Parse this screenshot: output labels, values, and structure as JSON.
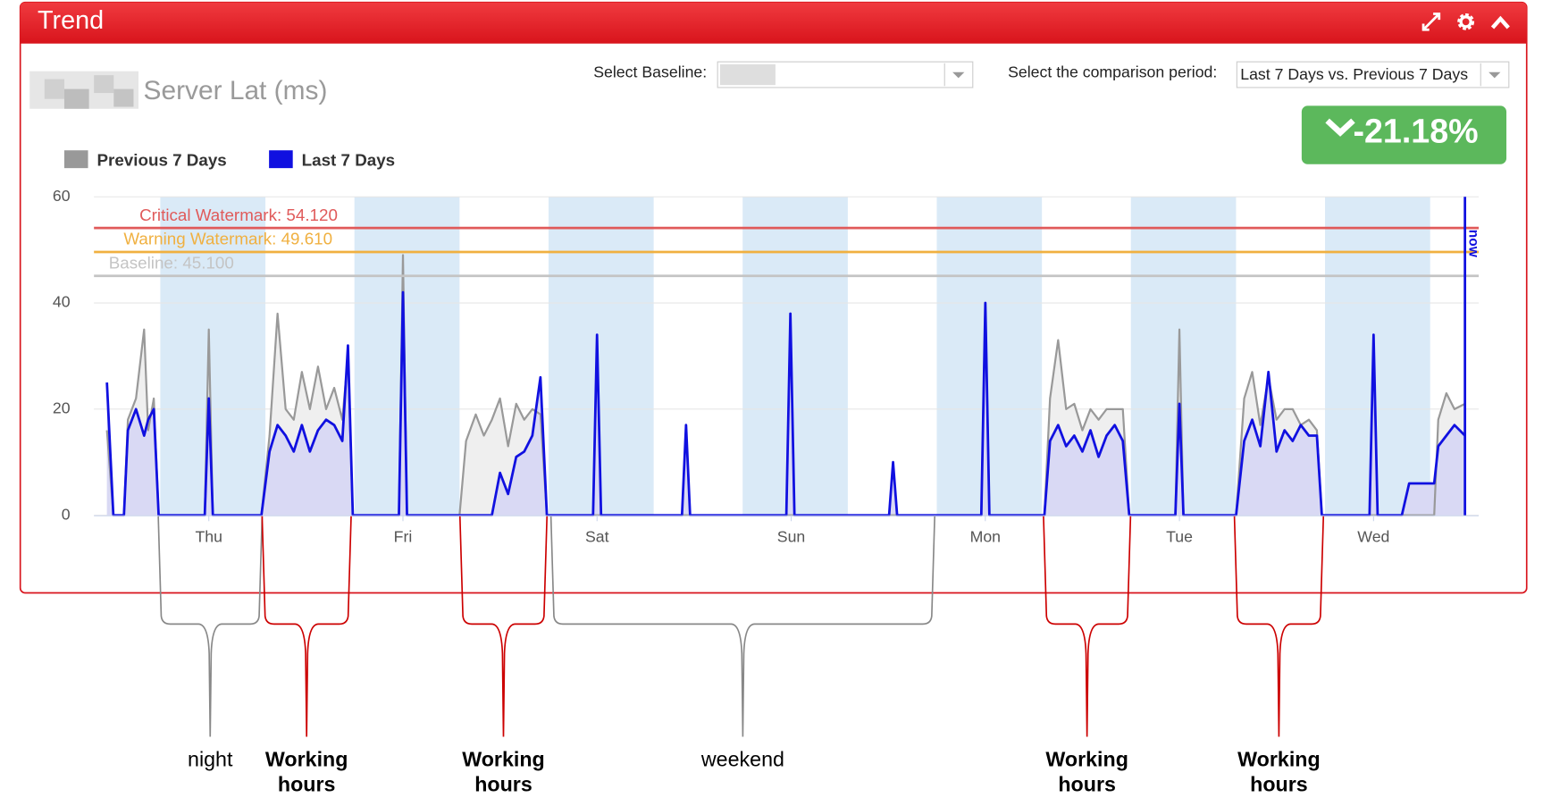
{
  "ui": {
    "panel_title": "Trend",
    "metric_title": "Server Lat (ms)",
    "baseline_label": "Select Baseline:",
    "period_label": "Select the comparison period:",
    "period_value": "Last 7 Days vs. Previous 7 Days",
    "change": "-21.18%"
  },
  "chart_data": {
    "type": "area",
    "xlim": [
      -14.2,
      157
    ],
    "xticks": [
      {
        "value": 0,
        "label": "Thu"
      },
      {
        "value": 24,
        "label": "Fri"
      },
      {
        "value": 48,
        "label": "Sat"
      },
      {
        "value": 72,
        "label": "Sun"
      },
      {
        "value": 96,
        "label": "Mon"
      },
      {
        "value": 120,
        "label": "Tue"
      },
      {
        "value": 144,
        "label": "Wed"
      }
    ],
    "ylim": [
      0,
      60
    ],
    "yticks": [
      0,
      20,
      40,
      60
    ],
    "grid": true,
    "legend": "top-left",
    "plot_bands": [
      [
        -6,
        7
      ],
      [
        18,
        31
      ],
      [
        42,
        55
      ],
      [
        66,
        79
      ],
      [
        90,
        103
      ],
      [
        114,
        127
      ],
      [
        138,
        151
      ]
    ],
    "plot_lines": [
      {
        "label": "Critical Watermark: 54.120",
        "value": 54.12,
        "color": "#e05a5a"
      },
      {
        "label": "Warning Watermark: 49.610",
        "value": 49.61,
        "color": "#f0b040"
      },
      {
        "label": "Baseline: 45.100",
        "value": 45.1,
        "color": "#c4c4c4"
      }
    ],
    "now": {
      "label": "now",
      "value": 155.3
    },
    "x": [
      -12.6,
      -11.8,
      -10.5,
      -10,
      -9,
      -8,
      -7.5,
      -6.8,
      -6.2,
      -0.5,
      0,
      0.5,
      6.5,
      7.5,
      8.5,
      9.5,
      10.5,
      11.5,
      12.5,
      13.5,
      14.5,
      15.5,
      16.5,
      17.2,
      17.8,
      23.5,
      24,
      24.5,
      31,
      31.8,
      33,
      34,
      35,
      36,
      37,
      38,
      39,
      40,
      41,
      41.8,
      47.5,
      48,
      48.5,
      58.5,
      59,
      59.5,
      71.4,
      71.9,
      72.4,
      84.1,
      84.6,
      85.1,
      95.5,
      96,
      96.5,
      103.3,
      104,
      105,
      106,
      107,
      108,
      109,
      110,
      111,
      112,
      113,
      113.8,
      119.5,
      120,
      120.5,
      127,
      128,
      129,
      130,
      131,
      132,
      133,
      134,
      135,
      136,
      137,
      137.6,
      143.5,
      144,
      144.5,
      147.5,
      148.4,
      151.5,
      152,
      153,
      154,
      155.3
    ],
    "series": [
      {
        "name": "Previous 7 Days",
        "color": "#999999",
        "fill": "#efefef",
        "values": [
          16,
          0,
          0,
          18,
          22,
          35,
          16,
          22,
          0,
          0,
          35,
          0,
          0,
          15,
          38,
          20,
          18,
          27,
          20,
          28,
          20,
          24,
          18,
          30,
          0,
          0,
          49,
          0,
          0,
          14,
          19,
          15,
          18,
          22,
          13,
          21,
          18,
          20,
          19,
          0,
          0,
          0,
          0,
          0,
          0,
          0,
          0,
          0,
          0,
          0,
          0,
          0,
          0,
          40,
          0,
          0,
          22,
          33,
          20,
          21,
          16,
          20,
          18,
          20,
          20,
          20,
          0,
          0,
          35,
          0,
          0,
          22,
          27,
          17,
          26,
          18,
          20,
          20,
          17,
          18,
          16,
          0,
          0,
          0,
          0,
          0,
          0,
          0,
          18,
          23,
          20,
          21
        ]
      },
      {
        "name": "Last 7 Days",
        "color": "#1010e0",
        "fill": "#d9d9f4",
        "values": [
          25,
          0,
          0,
          16,
          20,
          15,
          18,
          20,
          0,
          0,
          22,
          0,
          0,
          12,
          17,
          15,
          12,
          17,
          12,
          16,
          18,
          17,
          14,
          32,
          0,
          0,
          42,
          0,
          0,
          0,
          0,
          0,
          0,
          8,
          4,
          11,
          12,
          15,
          26,
          0,
          0,
          34,
          0,
          0,
          17,
          0,
          0,
          38,
          0,
          0,
          10,
          0,
          0,
          40,
          0,
          0,
          14,
          17,
          13,
          15,
          12,
          16,
          11,
          15,
          17,
          14,
          0,
          0,
          21,
          0,
          0,
          14,
          18,
          13,
          27,
          12,
          16,
          14,
          17,
          15,
          15,
          0,
          0,
          34,
          0,
          0,
          6,
          6,
          13,
          15,
          17,
          15
        ]
      }
    ],
    "annotations": [
      "night",
      "Working hours",
      "Working hours",
      "weekend",
      "Working hours",
      "Working hours"
    ]
  }
}
